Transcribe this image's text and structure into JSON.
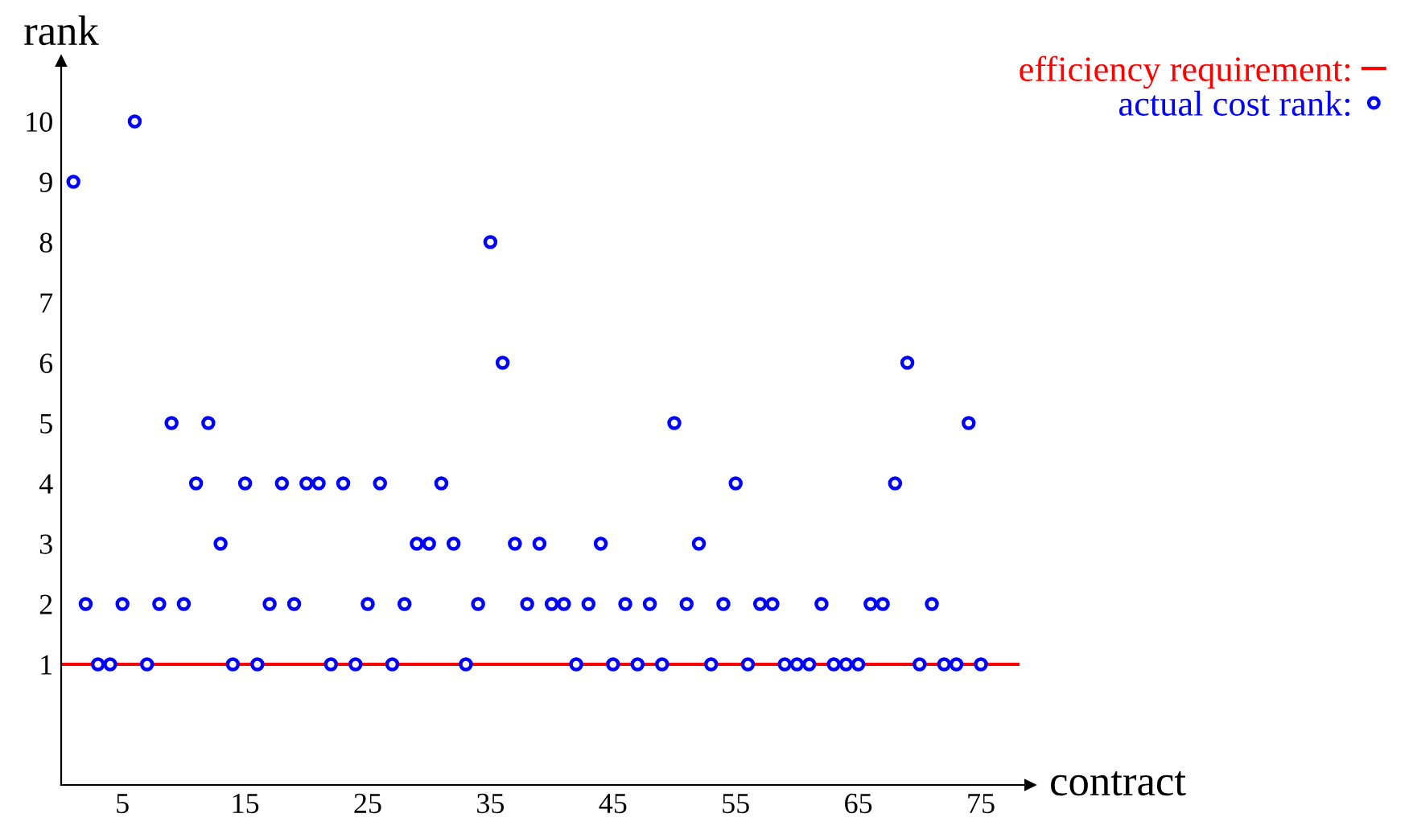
{
  "chart_data": {
    "type": "scatter",
    "xlabel": "contract",
    "ylabel": "rank",
    "xlim": [
      0,
      79
    ],
    "ylim": [
      -1,
      11
    ],
    "xticks": [
      5,
      15,
      25,
      35,
      45,
      55,
      65,
      75
    ],
    "yticks": [
      1,
      2,
      3,
      4,
      5,
      6,
      7,
      8,
      9,
      10
    ],
    "grid": false,
    "legend": "top right",
    "marker": "circle",
    "series": [
      {
        "name": "efficiency requirement:",
        "type": "line",
        "color": "#ff0000",
        "marker": "none",
        "line_style": "solid",
        "x": [
          0,
          78
        ],
        "values": [
          1,
          1
        ]
      },
      {
        "name": "actual cost rank:",
        "color": "#0000ff",
        "x": [
          1,
          2,
          3,
          4,
          5,
          6,
          7,
          8,
          9,
          10,
          11,
          12,
          13,
          14,
          15,
          16,
          17,
          18,
          19,
          20,
          21,
          22,
          23,
          24,
          25,
          26,
          27,
          28,
          29,
          30,
          31,
          32,
          33,
          34,
          35,
          36,
          37,
          38,
          39,
          40,
          41,
          42,
          43,
          44,
          45,
          46,
          47,
          48,
          49,
          50,
          51,
          52,
          53,
          54,
          55,
          56,
          57,
          58,
          59,
          60,
          61,
          62,
          63,
          64,
          65,
          66,
          67,
          68,
          69,
          70,
          71,
          72,
          73,
          74,
          75
        ],
        "values": [
          9,
          2,
          1,
          1,
          2,
          10,
          1,
          2,
          5,
          2,
          4,
          5,
          3,
          1,
          4,
          1,
          2,
          4,
          2,
          4,
          4,
          1,
          4,
          1,
          2,
          4,
          1,
          2,
          3,
          3,
          4,
          3,
          1,
          2,
          8,
          6,
          3,
          2,
          3,
          2,
          2,
          1,
          2,
          3,
          1,
          2,
          1,
          2,
          1,
          5,
          2,
          3,
          1,
          2,
          4,
          1,
          2,
          2,
          1,
          1,
          1,
          2,
          1,
          1,
          1,
          2,
          2,
          4,
          6,
          1,
          2,
          1,
          1,
          5,
          1
        ]
      }
    ]
  }
}
